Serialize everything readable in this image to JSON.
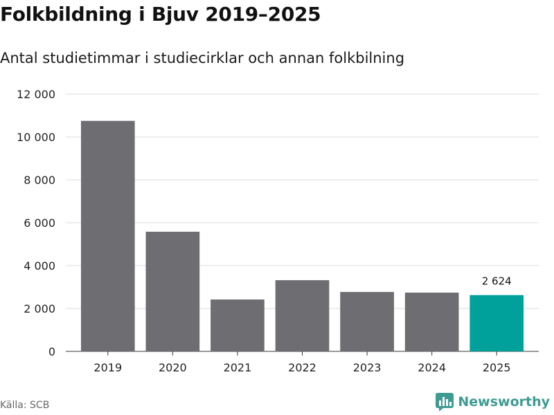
{
  "header": {
    "title": "Folkbildning i Bjuv 2019–2025",
    "subtitle": "Antal studietimmar i studiecirklar och annan folkbilning"
  },
  "footer": {
    "source": "Källa: SCB",
    "brand": "Newsworthy",
    "brand_icon": "bar-chart-icon"
  },
  "colors": {
    "bar_default": "#6e6d72",
    "bar_highlight": "#00a19a",
    "grid": "#dddddd",
    "brand": "#3e9b92"
  },
  "chart_data": {
    "type": "bar",
    "title": "Folkbildning i Bjuv 2019–2025",
    "subtitle": "Antal studietimmar i studiecirklar och annan folkbilning",
    "xlabel": "",
    "ylabel": "",
    "categories": [
      "2019",
      "2020",
      "2021",
      "2022",
      "2023",
      "2024",
      "2025"
    ],
    "values": [
      10750,
      5580,
      2420,
      3320,
      2770,
      2740,
      2624
    ],
    "highlight_index": 6,
    "data_labels": [
      {
        "index": 6,
        "text": "2 624"
      }
    ],
    "ylim": [
      0,
      12000
    ],
    "yticks": [
      0,
      2000,
      4000,
      6000,
      8000,
      10000,
      12000
    ],
    "ytick_labels": [
      "0",
      "2 000",
      "4 000",
      "6 000",
      "8 000",
      "10 000",
      "12 000"
    ],
    "grid": true,
    "legend": "none"
  }
}
